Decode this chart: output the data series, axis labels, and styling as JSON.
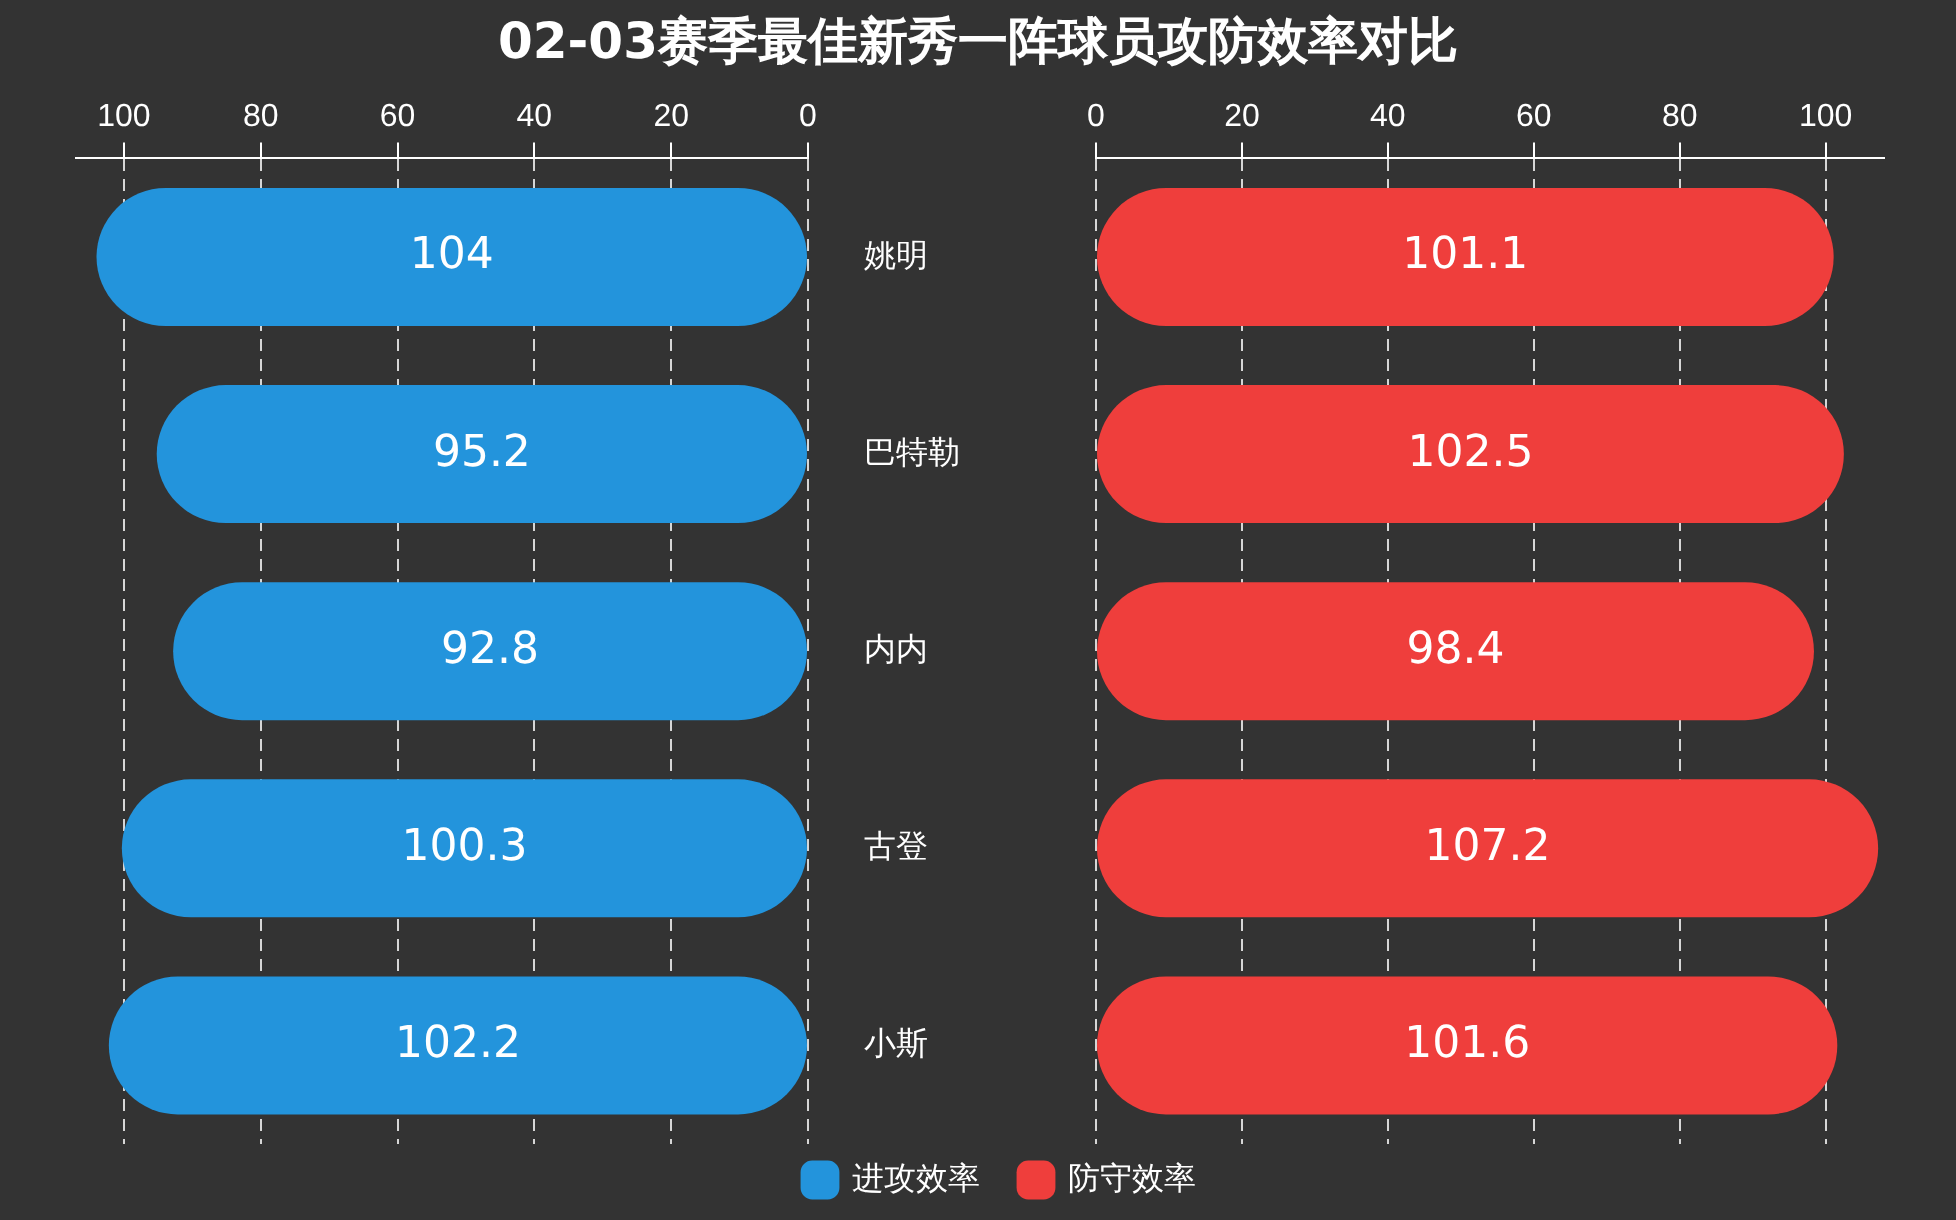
{
  "chart_data": [
    {
      "type": "bar",
      "orientation": "horizontal",
      "title": "02-03赛季最佳新秀一阵球员攻防效率对比",
      "categories": [
        "姚明",
        "巴特勒",
        "内内",
        "古登",
        "小斯"
      ],
      "series": [
        {
          "name": "进攻效率",
          "color": "#2394dc",
          "values": [
            104,
            95.2,
            92.8,
            100.3,
            102.2
          ]
        }
      ],
      "xlim": [
        107,
        0
      ],
      "xticks": [
        100,
        80,
        60,
        40,
        20,
        0
      ],
      "grid": "x",
      "legend": "bottom",
      "data_labels": true
    },
    {
      "type": "bar",
      "orientation": "horizontal",
      "categories": [
        null,
        null,
        null,
        null,
        null
      ],
      "series": [
        {
          "name": "防守效率",
          "color": "#ef3e3c",
          "values": [
            101.1,
            102.5,
            98.4,
            107.2,
            101.6
          ]
        }
      ],
      "xlim": [
        0,
        108
      ],
      "xticks": [
        0,
        20,
        40,
        60,
        80,
        100
      ],
      "grid": "x",
      "legend": "bottom",
      "data_labels": true
    }
  ]
}
